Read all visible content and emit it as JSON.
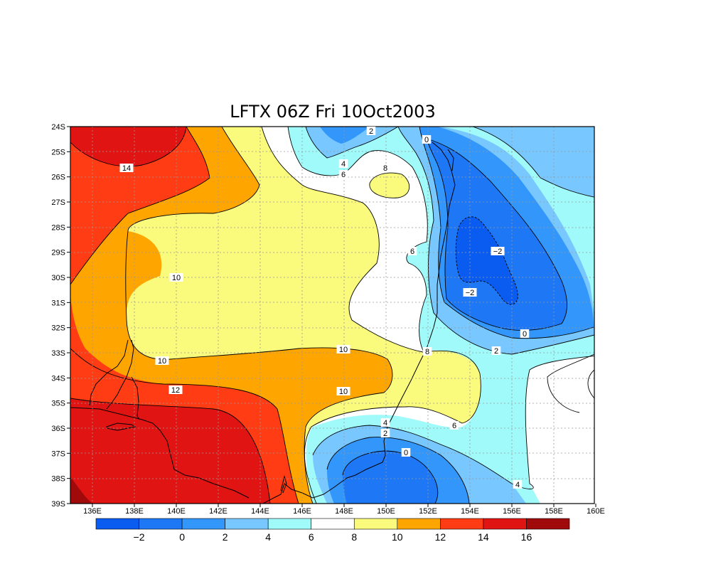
{
  "title": "LFTX 06Z Fri 10Oct2003",
  "axes": {
    "x_ticks": [
      "136E",
      "138E",
      "140E",
      "142E",
      "144E",
      "146E",
      "148E",
      "150E",
      "152E",
      "154E",
      "156E",
      "158E",
      "160E"
    ],
    "y_ticks": [
      "24S",
      "25S",
      "26S",
      "27S",
      "28S",
      "29S",
      "30S",
      "31S",
      "32S",
      "33S",
      "34S",
      "35S",
      "36S",
      "37S",
      "38S",
      "39S"
    ]
  },
  "colorbar": {
    "colors": [
      "#0a5cf0",
      "#1e78f5",
      "#3296fa",
      "#78c8ff",
      "#a0fafa",
      "#ffffff",
      "#fafa7d",
      "#ffa500",
      "#ff3c14",
      "#e11414",
      "#a00a0a"
    ],
    "labels": [
      "-2",
      "0",
      "2",
      "4",
      "6",
      "8",
      "10",
      "12",
      "14",
      "16"
    ]
  },
  "contour_labels": [
    {
      "text": "14"
    },
    {
      "text": "10"
    },
    {
      "text": "10"
    },
    {
      "text": "12"
    },
    {
      "text": "10"
    },
    {
      "text": "10"
    },
    {
      "text": "2"
    },
    {
      "text": "4"
    },
    {
      "text": "6"
    },
    {
      "text": "8"
    },
    {
      "text": "0"
    },
    {
      "text": "-2"
    },
    {
      "text": "-2"
    },
    {
      "text": "6"
    },
    {
      "text": "0"
    },
    {
      "text": "2"
    },
    {
      "text": "8"
    },
    {
      "text": "6"
    },
    {
      "text": "4"
    },
    {
      "text": "2"
    },
    {
      "text": "0"
    },
    {
      "text": "4"
    }
  ]
}
